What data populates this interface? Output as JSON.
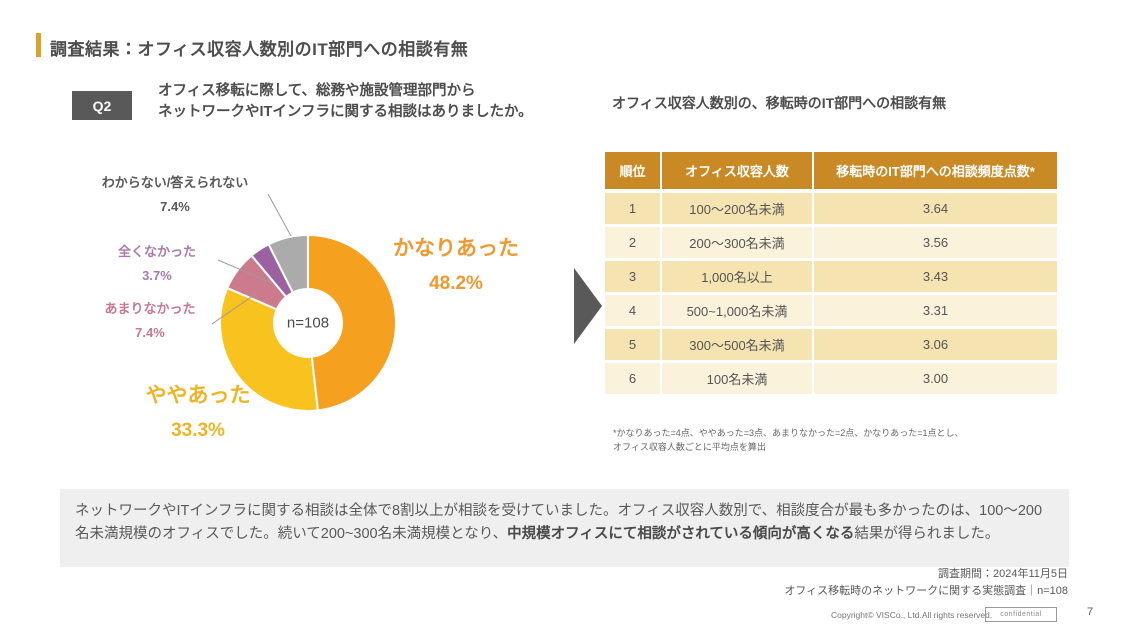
{
  "theme": {
    "accent": "#D8A428",
    "heading_color": "#4D4D4D",
    "badge_bg": "#595959",
    "table_header_bg": "#C98A25",
    "table_row_odd": "#F5E3B1",
    "table_row_even": "#FBF2DC",
    "summary_bg": "#EFEFEF",
    "arrow_color": "#595959"
  },
  "slide": {
    "title": "調査結果：オフィス収容人数別のIT部門への相談有無"
  },
  "question": {
    "badge": "Q2",
    "line1": "オフィス移転に際して、総務や施設管理部門から",
    "line2": "ネットワークやITインフラに関する相談はありましたか。"
  },
  "chart_data": {
    "type": "pie",
    "donut": true,
    "center_label": "n=108",
    "slices": [
      {
        "label": "かなりあった",
        "value": 48.2,
        "pct": "48.2%",
        "color": "#F5A01E",
        "label_color": "#F0992F"
      },
      {
        "label": "ややあった",
        "value": 33.3,
        "pct": "33.3%",
        "color": "#F8C31F",
        "label_color": "#EFB424"
      },
      {
        "label": "あまりなかった",
        "value": 7.4,
        "pct": "7.4%",
        "color": "#CB7B8C",
        "label_color": "#C87890"
      },
      {
        "label": "全くなかった",
        "value": 3.7,
        "pct": "3.7%",
        "color": "#9C61A1",
        "label_color": "#A97BAB"
      },
      {
        "label": "わからない/答えられない",
        "value": 7.4,
        "pct": "7.4%",
        "color": "#ABABAB",
        "label_color": "#595959"
      }
    ]
  },
  "table": {
    "heading": "オフィス収容人数別の、移転時のIT部門への相談有無",
    "columns": [
      "順位",
      "オフィス収容人数",
      "移転時のIT部門への相談頻度点数*"
    ],
    "rows": [
      {
        "rank": "1",
        "size": "100〜200名未満",
        "score": "3.64"
      },
      {
        "rank": "2",
        "size": "200〜300名未満",
        "score": "3.56"
      },
      {
        "rank": "3",
        "size": "1,000名以上",
        "score": "3.43"
      },
      {
        "rank": "4",
        "size": "500~1,000名未満",
        "score": "3.31"
      },
      {
        "rank": "5",
        "size": "300〜500名未満",
        "score": "3.06"
      },
      {
        "rank": "6",
        "size": "100名未満",
        "score": "3.00"
      }
    ],
    "footnote_line1": "*かなりあった=4点、ややあった=3点、あまりなかった=2点、かなりあった=1点とし、",
    "footnote_line2": "オフィス収容人数ごとに平均点を算出"
  },
  "summary": {
    "text_before": "ネットワークやITインフラに関する相談は全体で8割以上が相談を受けていました。オフィス収容人数別で、相談度合が最も多かったのは、100〜200名未満規模のオフィスでした。続いて200~300名未満規模となり、",
    "text_bold": "中規模オフィスにて相談がされている傾向が高くなる",
    "text_after": "結果が得られました。"
  },
  "footer": {
    "period": "調査期間：2024年11月5日",
    "survey_name": "オフィス移転時のネットワークに関する実態調査｜n=108",
    "copyright": "Copyright© VISCo., Ltd.All rights reserved.",
    "confidential": "confidential",
    "page": "7"
  }
}
